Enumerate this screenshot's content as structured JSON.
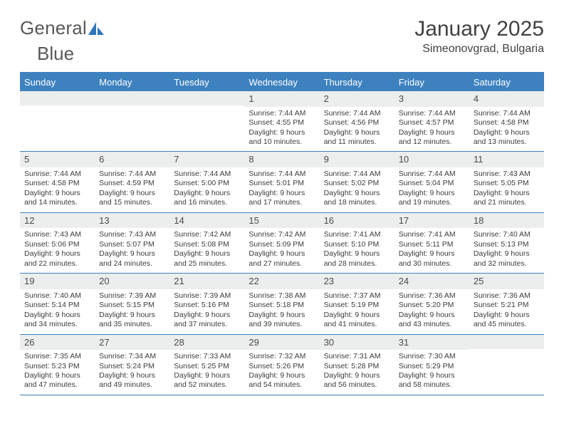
{
  "logo": {
    "text1": "General",
    "text2": "Blue"
  },
  "title": "January 2025",
  "location": "Simeonovgrad, Bulgaria",
  "colors": {
    "primary": "#3d81bf",
    "header_gray": "#eceded",
    "text": "#3c3c3c",
    "title_text": "#414141",
    "logo_text": "#585858",
    "logo_blue": "#2e76ba"
  },
  "weekdays": [
    "Sunday",
    "Monday",
    "Tuesday",
    "Wednesday",
    "Thursday",
    "Friday",
    "Saturday"
  ],
  "weeks": [
    [
      null,
      null,
      null,
      {
        "n": "1",
        "sr": "7:44 AM",
        "ss": "4:55 PM",
        "dh": "9",
        "dm": "10"
      },
      {
        "n": "2",
        "sr": "7:44 AM",
        "ss": "4:56 PM",
        "dh": "9",
        "dm": "11"
      },
      {
        "n": "3",
        "sr": "7:44 AM",
        "ss": "4:57 PM",
        "dh": "9",
        "dm": "12"
      },
      {
        "n": "4",
        "sr": "7:44 AM",
        "ss": "4:58 PM",
        "dh": "9",
        "dm": "13"
      }
    ],
    [
      {
        "n": "5",
        "sr": "7:44 AM",
        "ss": "4:58 PM",
        "dh": "9",
        "dm": "14"
      },
      {
        "n": "6",
        "sr": "7:44 AM",
        "ss": "4:59 PM",
        "dh": "9",
        "dm": "15"
      },
      {
        "n": "7",
        "sr": "7:44 AM",
        "ss": "5:00 PM",
        "dh": "9",
        "dm": "16"
      },
      {
        "n": "8",
        "sr": "7:44 AM",
        "ss": "5:01 PM",
        "dh": "9",
        "dm": "17"
      },
      {
        "n": "9",
        "sr": "7:44 AM",
        "ss": "5:02 PM",
        "dh": "9",
        "dm": "18"
      },
      {
        "n": "10",
        "sr": "7:44 AM",
        "ss": "5:04 PM",
        "dh": "9",
        "dm": "19"
      },
      {
        "n": "11",
        "sr": "7:43 AM",
        "ss": "5:05 PM",
        "dh": "9",
        "dm": "21"
      }
    ],
    [
      {
        "n": "12",
        "sr": "7:43 AM",
        "ss": "5:06 PM",
        "dh": "9",
        "dm": "22"
      },
      {
        "n": "13",
        "sr": "7:43 AM",
        "ss": "5:07 PM",
        "dh": "9",
        "dm": "24"
      },
      {
        "n": "14",
        "sr": "7:42 AM",
        "ss": "5:08 PM",
        "dh": "9",
        "dm": "25"
      },
      {
        "n": "15",
        "sr": "7:42 AM",
        "ss": "5:09 PM",
        "dh": "9",
        "dm": "27"
      },
      {
        "n": "16",
        "sr": "7:41 AM",
        "ss": "5:10 PM",
        "dh": "9",
        "dm": "28"
      },
      {
        "n": "17",
        "sr": "7:41 AM",
        "ss": "5:11 PM",
        "dh": "9",
        "dm": "30"
      },
      {
        "n": "18",
        "sr": "7:40 AM",
        "ss": "5:13 PM",
        "dh": "9",
        "dm": "32"
      }
    ],
    [
      {
        "n": "19",
        "sr": "7:40 AM",
        "ss": "5:14 PM",
        "dh": "9",
        "dm": "34"
      },
      {
        "n": "20",
        "sr": "7:39 AM",
        "ss": "5:15 PM",
        "dh": "9",
        "dm": "35"
      },
      {
        "n": "21",
        "sr": "7:39 AM",
        "ss": "5:16 PM",
        "dh": "9",
        "dm": "37"
      },
      {
        "n": "22",
        "sr": "7:38 AM",
        "ss": "5:18 PM",
        "dh": "9",
        "dm": "39"
      },
      {
        "n": "23",
        "sr": "7:37 AM",
        "ss": "5:19 PM",
        "dh": "9",
        "dm": "41"
      },
      {
        "n": "24",
        "sr": "7:36 AM",
        "ss": "5:20 PM",
        "dh": "9",
        "dm": "43"
      },
      {
        "n": "25",
        "sr": "7:36 AM",
        "ss": "5:21 PM",
        "dh": "9",
        "dm": "45"
      }
    ],
    [
      {
        "n": "26",
        "sr": "7:35 AM",
        "ss": "5:23 PM",
        "dh": "9",
        "dm": "47"
      },
      {
        "n": "27",
        "sr": "7:34 AM",
        "ss": "5:24 PM",
        "dh": "9",
        "dm": "49"
      },
      {
        "n": "28",
        "sr": "7:33 AM",
        "ss": "5:25 PM",
        "dh": "9",
        "dm": "52"
      },
      {
        "n": "29",
        "sr": "7:32 AM",
        "ss": "5:26 PM",
        "dh": "9",
        "dm": "54"
      },
      {
        "n": "30",
        "sr": "7:31 AM",
        "ss": "5:28 PM",
        "dh": "9",
        "dm": "56"
      },
      {
        "n": "31",
        "sr": "7:30 AM",
        "ss": "5:29 PM",
        "dh": "9",
        "dm": "58"
      },
      null
    ]
  ],
  "labels": {
    "sunrise": "Sunrise:",
    "sunset": "Sunset:",
    "daylight": "Daylight:",
    "hours": "hours",
    "and": "and",
    "minutes": "minutes."
  }
}
